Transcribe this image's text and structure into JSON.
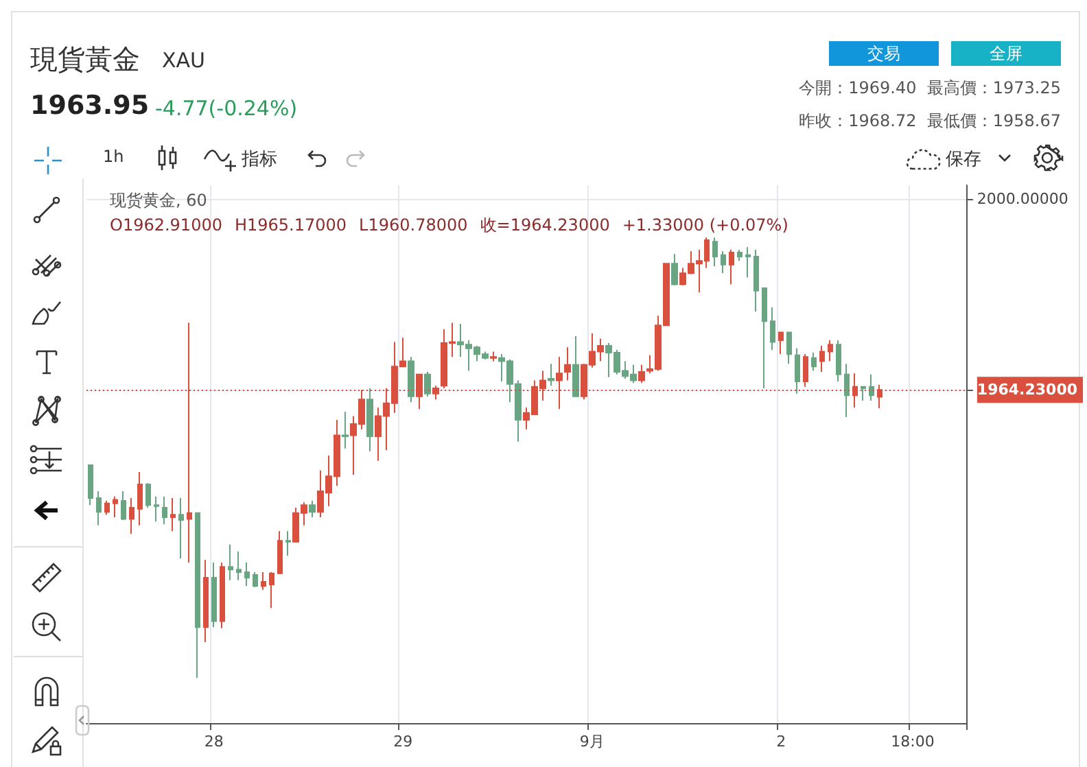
{
  "chart_data": {
    "type": "candlestick",
    "title": "現貨黃金",
    "subtitle": "XAU",
    "annotations": [
      "1963.95",
      "-4.77(-0.24%)",
      "交易",
      "全屏",
      "今開：1969.40",
      "最高價：1973.25",
      "昨收：1968.72",
      "最低價：1958.67",
      "1h",
      "指标",
      "保存",
      "现货黄金, 60",
      "O1962.91000",
      "H1965.17000",
      "L1960.78000",
      "收=1964.23000",
      "+1.33000 (+0.07%)"
    ],
    "categories": [
      null,
      null,
      null,
      null,
      null,
      null,
      null,
      null,
      null,
      null,
      null,
      null,
      null,
      null,
      null,
      "28",
      null,
      null,
      null,
      null,
      null,
      null,
      null,
      null,
      null,
      null,
      null,
      null,
      null,
      null,
      null,
      null,
      null,
      null,
      null,
      null,
      null,
      null,
      "29",
      null,
      null,
      null,
      null,
      null,
      null,
      null,
      null,
      null,
      null,
      null,
      null,
      null,
      null,
      null,
      null,
      null,
      null,
      null,
      null,
      null,
      null,
      "9月",
      null,
      null,
      null,
      null,
      null,
      null,
      null,
      null,
      null,
      null,
      null,
      null,
      null,
      null,
      null,
      null,
      null,
      null,
      null,
      null,
      null,
      null,
      "2",
      null,
      null,
      null,
      null,
      null,
      null,
      null,
      null,
      null,
      null,
      null,
      null,
      null,
      null,
      null,
      "18:00",
      null,
      null,
      null,
      null,
      null,
      null
    ],
    "ohlc": [
      [
        1950.1,
        1950.1,
        1942.6,
        1943.9
      ],
      [
        1943.9,
        1945.2,
        1938.8,
        1941.3
      ],
      [
        1941.3,
        1943.4,
        1940.8,
        1942.9
      ],
      [
        1942.9,
        1944.2,
        1940.3,
        1943.6
      ],
      [
        1943.4,
        1945.2,
        1939.8,
        1940.0
      ],
      [
        1940.0,
        1943.9,
        1937.2,
        1942.1
      ],
      [
        1941.9,
        1948.8,
        1938.8,
        1946.5
      ],
      [
        1946.5,
        1946.7,
        1942.1,
        1942.6
      ],
      [
        1942.6,
        1944.2,
        1939.5,
        1942.4
      ],
      [
        1942.1,
        1944.2,
        1939.0,
        1940.3
      ],
      [
        1940.3,
        1943.9,
        1937.7,
        1940.8
      ],
      [
        1940.8,
        1943.9,
        1932.6,
        1939.8
      ],
      [
        1940.0,
        1976.8,
        1931.8,
        1941.1
      ],
      [
        1941.1,
        1941.1,
        1910.2,
        1919.7
      ],
      [
        1919.7,
        1932.3,
        1916.9,
        1929.0
      ],
      [
        1929.0,
        1931.8,
        1919.7,
        1920.8
      ],
      [
        1920.8,
        1931.8,
        1919.5,
        1931.0
      ],
      [
        1931.0,
        1935.2,
        1928.5,
        1930.5
      ],
      [
        1930.5,
        1933.9,
        1928.5,
        1930.0
      ],
      [
        1930.0,
        1931.8,
        1927.4,
        1929.0
      ],
      [
        1929.5,
        1930.0,
        1927.2,
        1927.4
      ],
      [
        1927.4,
        1930.0,
        1926.7,
        1928.2
      ],
      [
        1927.7,
        1930.0,
        1923.3,
        1929.8
      ],
      [
        1929.8,
        1937.7,
        1929.8,
        1935.9
      ],
      [
        1935.9,
        1937.7,
        1933.1,
        1935.7
      ],
      [
        1935.7,
        1942.1,
        1935.7,
        1941.1
      ],
      [
        1941.1,
        1943.1,
        1938.8,
        1942.6
      ],
      [
        1942.6,
        1943.4,
        1940.3,
        1941.3
      ],
      [
        1941.3,
        1949.1,
        1940.3,
        1945.2
      ],
      [
        1944.9,
        1951.9,
        1942.4,
        1948.0
      ],
      [
        1948.0,
        1958.6,
        1946.2,
        1955.7
      ],
      [
        1955.7,
        1960.1,
        1953.2,
        1955.5
      ],
      [
        1955.7,
        1959.3,
        1948.3,
        1957.8
      ],
      [
        1957.8,
        1964.2,
        1956.8,
        1962.4
      ],
      [
        1962.4,
        1964.5,
        1952.7,
        1955.5
      ],
      [
        1955.5,
        1960.9,
        1950.9,
        1959.3
      ],
      [
        1959.3,
        1964.5,
        1952.9,
        1961.7
      ],
      [
        1961.7,
        1973.2,
        1959.9,
        1968.6
      ],
      [
        1968.6,
        1974.0,
        1968.6,
        1969.6
      ],
      [
        1969.6,
        1970.4,
        1961.9,
        1963.0
      ],
      [
        1963.0,
        1967.1,
        1960.6,
        1967.1
      ],
      [
        1967.1,
        1967.6,
        1963.0,
        1963.5
      ],
      [
        1963.5,
        1965.0,
        1962.4,
        1964.5
      ],
      [
        1965.0,
        1975.6,
        1964.5,
        1973.0
      ],
      [
        1973.0,
        1976.8,
        1970.4,
        1973.2
      ],
      [
        1973.2,
        1976.6,
        1970.4,
        1972.7
      ],
      [
        1972.7,
        1973.5,
        1967.8,
        1972.0
      ],
      [
        1972.2,
        1972.5,
        1969.6,
        1970.9
      ],
      [
        1970.9,
        1971.4,
        1969.9,
        1970.2
      ],
      [
        1970.2,
        1971.4,
        1969.6,
        1970.4
      ],
      [
        1970.2,
        1970.9,
        1965.8,
        1969.6
      ],
      [
        1969.6,
        1969.9,
        1961.9,
        1965.3
      ],
      [
        1965.3,
        1966.0,
        1954.5,
        1958.6
      ],
      [
        1958.6,
        1960.9,
        1956.8,
        1959.9
      ],
      [
        1959.6,
        1966.0,
        1959.6,
        1964.8
      ],
      [
        1964.5,
        1967.8,
        1962.2,
        1966.0
      ],
      [
        1966.3,
        1969.1,
        1965.0,
        1966.0
      ],
      [
        1966.0,
        1970.4,
        1960.6,
        1967.3
      ],
      [
        1967.6,
        1972.2,
        1966.0,
        1968.9
      ],
      [
        1968.9,
        1974.3,
        1963.0,
        1963.0
      ],
      [
        1963.0,
        1969.1,
        1962.4,
        1968.9
      ],
      [
        1968.9,
        1974.8,
        1968.4,
        1971.4
      ],
      [
        1971.4,
        1973.8,
        1969.6,
        1972.5
      ],
      [
        1972.5,
        1973.0,
        1966.6,
        1971.2
      ],
      [
        1971.2,
        1971.7,
        1967.1,
        1967.6
      ],
      [
        1967.8,
        1969.6,
        1966.3,
        1966.8
      ],
      [
        1967.1,
        1968.9,
        1965.5,
        1966.0
      ],
      [
        1966.0,
        1968.9,
        1965.5,
        1967.6
      ],
      [
        1967.8,
        1970.7,
        1967.3,
        1968.1
      ],
      [
        1968.1,
        1978.1,
        1967.8,
        1976.3
      ],
      [
        1976.3,
        1987.9,
        1976.3,
        1987.9
      ],
      [
        1987.9,
        1989.7,
        1983.8,
        1984.0
      ],
      [
        1984.0,
        1987.1,
        1983.8,
        1986.1
      ],
      [
        1986.1,
        1990.2,
        1985.9,
        1987.9
      ],
      [
        1987.9,
        1990.5,
        1982.5,
        1988.4
      ],
      [
        1988.4,
        1992.8,
        1987.1,
        1992.3
      ],
      [
        1992.0,
        1992.8,
        1987.4,
        1989.2
      ],
      [
        1989.5,
        1990.2,
        1986.1,
        1987.7
      ],
      [
        1987.7,
        1990.5,
        1984.0,
        1990.0
      ],
      [
        1990.0,
        1990.5,
        1988.4,
        1989.2
      ],
      [
        1989.5,
        1991.0,
        1985.3,
        1989.2
      ],
      [
        1989.2,
        1990.5,
        1978.9,
        1982.8
      ],
      [
        1983.3,
        1983.3,
        1964.5,
        1977.1
      ],
      [
        1977.1,
        1979.7,
        1971.7,
        1973.2
      ],
      [
        1973.5,
        1975.0,
        1970.9,
        1975.0
      ],
      [
        1975.0,
        1975.0,
        1969.1,
        1970.9
      ],
      [
        1970.7,
        1972.0,
        1963.5,
        1965.8
      ],
      [
        1965.8,
        1970.9,
        1964.8,
        1970.4
      ],
      [
        1970.2,
        1971.2,
        1967.8,
        1968.6
      ],
      [
        1969.6,
        1972.5,
        1967.6,
        1971.4
      ],
      [
        1971.4,
        1973.5,
        1969.6,
        1972.7
      ],
      [
        1972.7,
        1973.5,
        1965.8,
        1967.1
      ],
      [
        1967.1,
        1969.1,
        1959.1,
        1963.2
      ],
      [
        1963.2,
        1967.3,
        1960.9,
        1964.8
      ],
      [
        1964.8,
        1964.8,
        1962.2,
        1964.5
      ],
      [
        1964.8,
        1967.1,
        1962.2,
        1963.2
      ],
      [
        1962.91,
        1965.17,
        1960.78,
        1964.23
      ],
      null,
      null,
      null,
      null,
      null,
      null,
      null,
      null,
      null,
      null
    ],
    "ylim": [
      1901.7,
      2002.6
    ],
    "yticks": [
      {
        "value": 1964.23,
        "label": "1964.23000"
      },
      {
        "value": 2000,
        "label": "2000.00000"
      }
    ],
    "ref_lines": [
      {
        "axis": "y",
        "value": 1964.23,
        "color": "#d9503f",
        "line_style": "dotted"
      }
    ],
    "grid": true
  }
}
